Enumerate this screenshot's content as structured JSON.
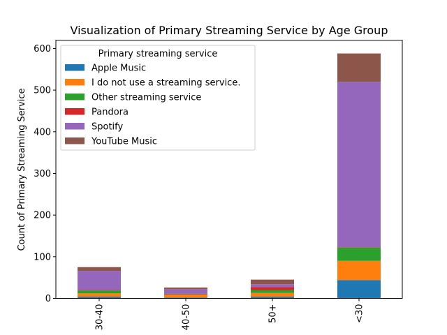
{
  "chart_data": {
    "type": "bar",
    "stacked": true,
    "title": "Visualization of Primary Streaming Service by Age Group",
    "xlabel": "",
    "ylabel": "Count of Primary Streaming Service",
    "categories": [
      "30-40",
      "40-50",
      "50+",
      "<30"
    ],
    "ylim": [
      0,
      620
    ],
    "yticks": [
      0,
      100,
      200,
      300,
      400,
      500,
      600
    ],
    "legend": {
      "title": "Primary streaming service",
      "placement": "top-left"
    },
    "series": [
      {
        "name": "Apple Music",
        "color": "#1f77b4",
        "values": [
          4,
          2,
          4,
          44
        ]
      },
      {
        "name": "I do not use a streaming service.",
        "color": "#ff7f0e",
        "values": [
          8,
          7,
          9,
          46
        ]
      },
      {
        "name": "Other streaming service",
        "color": "#2ca02c",
        "values": [
          7,
          1,
          7,
          32
        ]
      },
      {
        "name": "Pandora",
        "color": "#d62728",
        "values": [
          1,
          1,
          7,
          1
        ]
      },
      {
        "name": "Spotify",
        "color": "#9467bd",
        "values": [
          46,
          11,
          7,
          397
        ]
      },
      {
        "name": "YouTube Music",
        "color": "#8c564b",
        "values": [
          9,
          4,
          11,
          68
        ]
      }
    ]
  }
}
